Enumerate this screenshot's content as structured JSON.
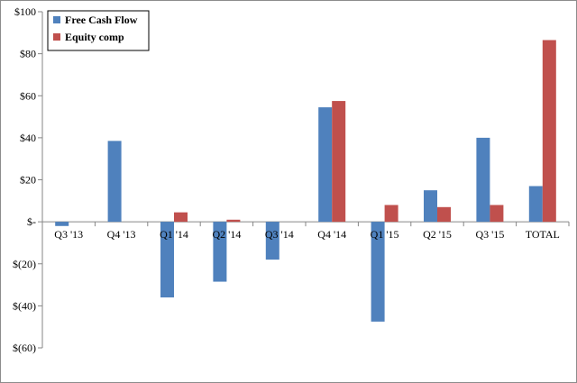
{
  "chart_data": {
    "type": "bar",
    "title": "",
    "xlabel": "",
    "ylabel": "",
    "categories": [
      "Q3 '13",
      "Q4 '13",
      "Q1 '14",
      "Q2 '14",
      "Q3 '14",
      "Q4 '14",
      "Q1 '15",
      "Q2 '15",
      "Q3 '15",
      "TOTAL"
    ],
    "series": [
      {
        "name": "Free Cash Flow",
        "color": "#4f81bd",
        "values": [
          -2,
          38.5,
          -36,
          -28.5,
          -18,
          54.5,
          -47.5,
          15,
          40,
          17
        ]
      },
      {
        "name": "Equity comp",
        "color": "#c0504d",
        "values": [
          null,
          null,
          4.5,
          1,
          null,
          57.5,
          8,
          7,
          8,
          86.5
        ]
      }
    ],
    "ylim": [
      -60,
      100
    ],
    "yticks": [
      100,
      80,
      60,
      40,
      20,
      0,
      -20,
      -40,
      -60
    ],
    "ytick_labels": [
      "$100",
      "$80",
      "$60",
      "$40",
      "$20",
      "$-",
      "$(20)",
      "$(40)",
      "$(60)"
    ],
    "legend": "top-left",
    "grid": false
  }
}
